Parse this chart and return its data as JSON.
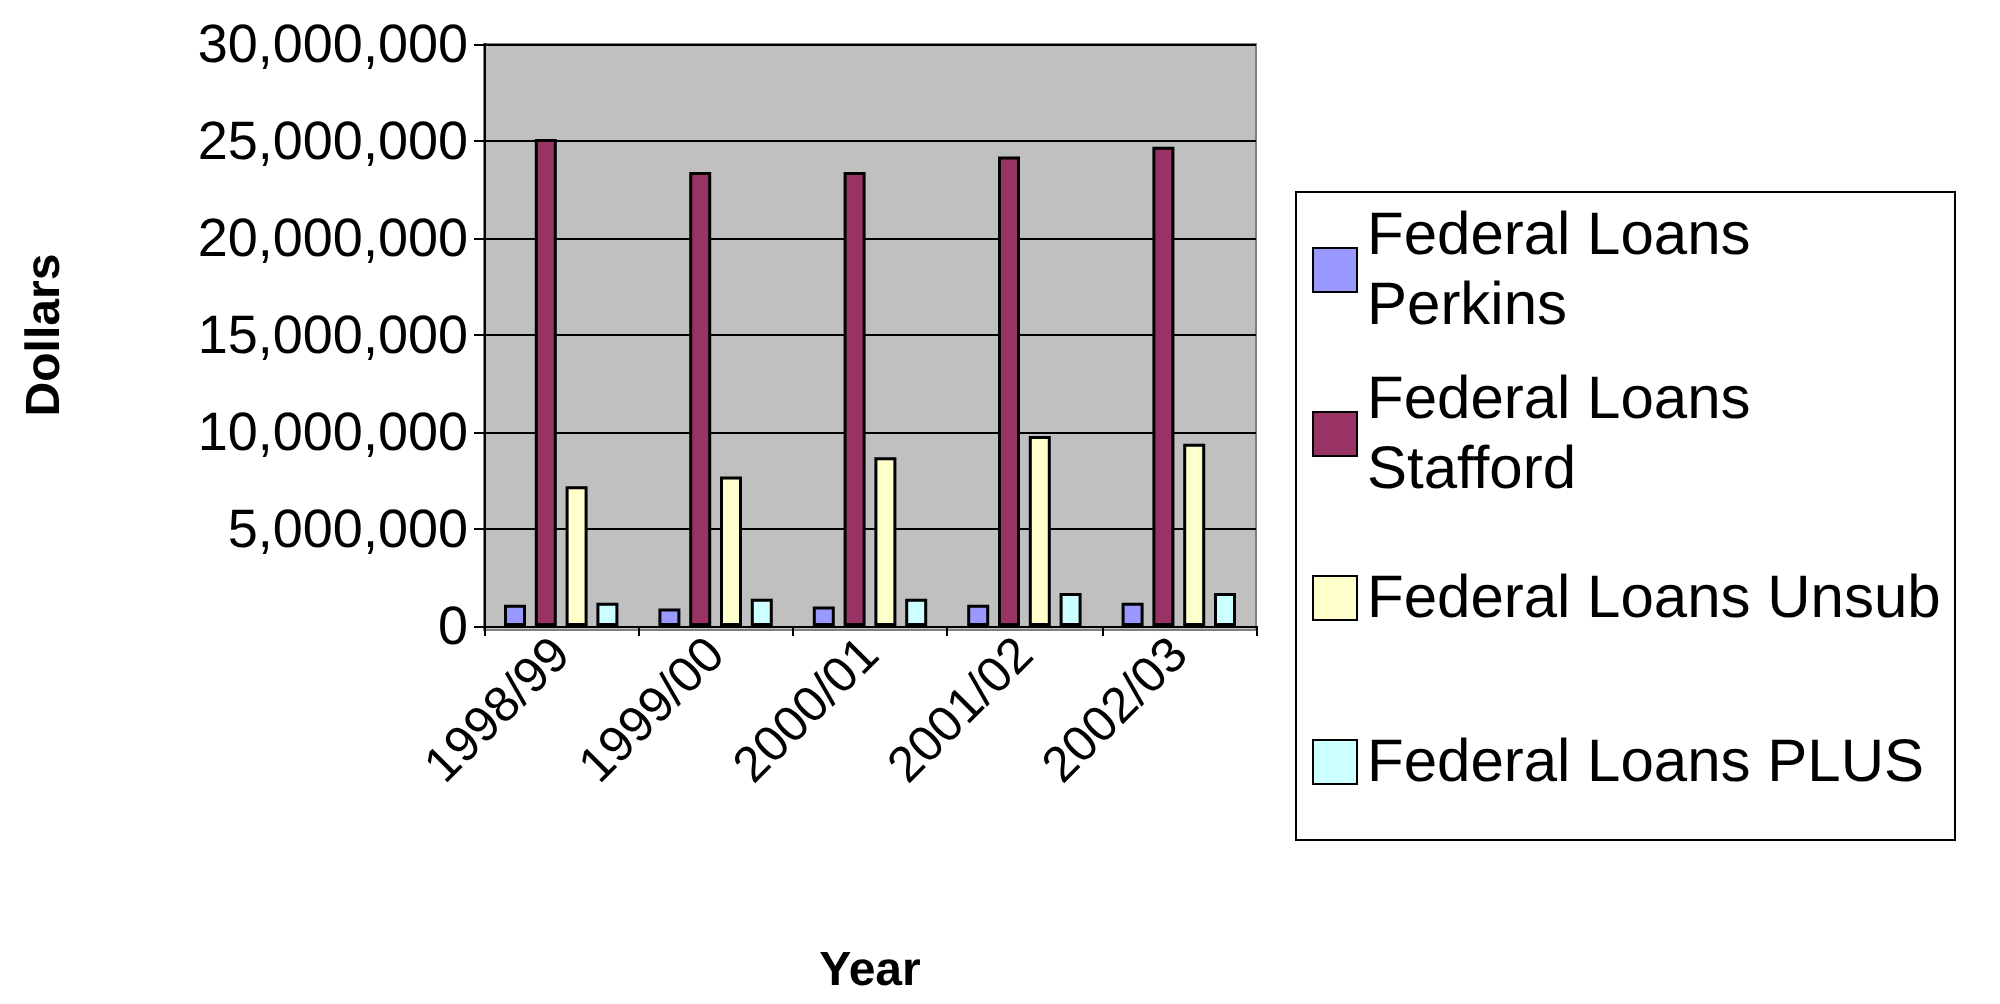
{
  "chart_data": {
    "type": "bar",
    "xlabel": "Year",
    "ylabel": "Dollars",
    "categories": [
      "1998/99",
      "1999/00",
      "2000/01",
      "2001/02",
      "2002/03"
    ],
    "series": [
      {
        "name": "Federal Loans Perkins",
        "color": "#9999ff",
        "values": [
          1100000,
          900000,
          1000000,
          1100000,
          1200000
        ]
      },
      {
        "name": "Federal Loans Stafford",
        "color": "#993366",
        "values": [
          25100000,
          23400000,
          23400000,
          24200000,
          24700000
        ]
      },
      {
        "name": "Federal Loans Unsub",
        "color": "#ffffcc",
        "values": [
          7200000,
          7700000,
          8700000,
          9800000,
          9400000
        ]
      },
      {
        "name": "Federal Loans PLUS",
        "color": "#ccffff",
        "values": [
          1200000,
          1400000,
          1400000,
          1700000,
          1700000
        ]
      }
    ],
    "ylim": [
      0,
      30000000
    ],
    "yticks": [
      0,
      {
        "value": 5000000,
        "label": "5,000,000"
      },
      {
        "value": 10000000,
        "label": "10,000,000"
      },
      {
        "value": 15000000,
        "label": "15,000,000"
      },
      {
        "value": 20000000,
        "label": "20,000,000"
      },
      {
        "value": 25000000,
        "label": "25,000,000"
      },
      {
        "value": 30000000,
        "label": "30,000,000"
      }
    ],
    "grid": "y",
    "legend": "right"
  }
}
